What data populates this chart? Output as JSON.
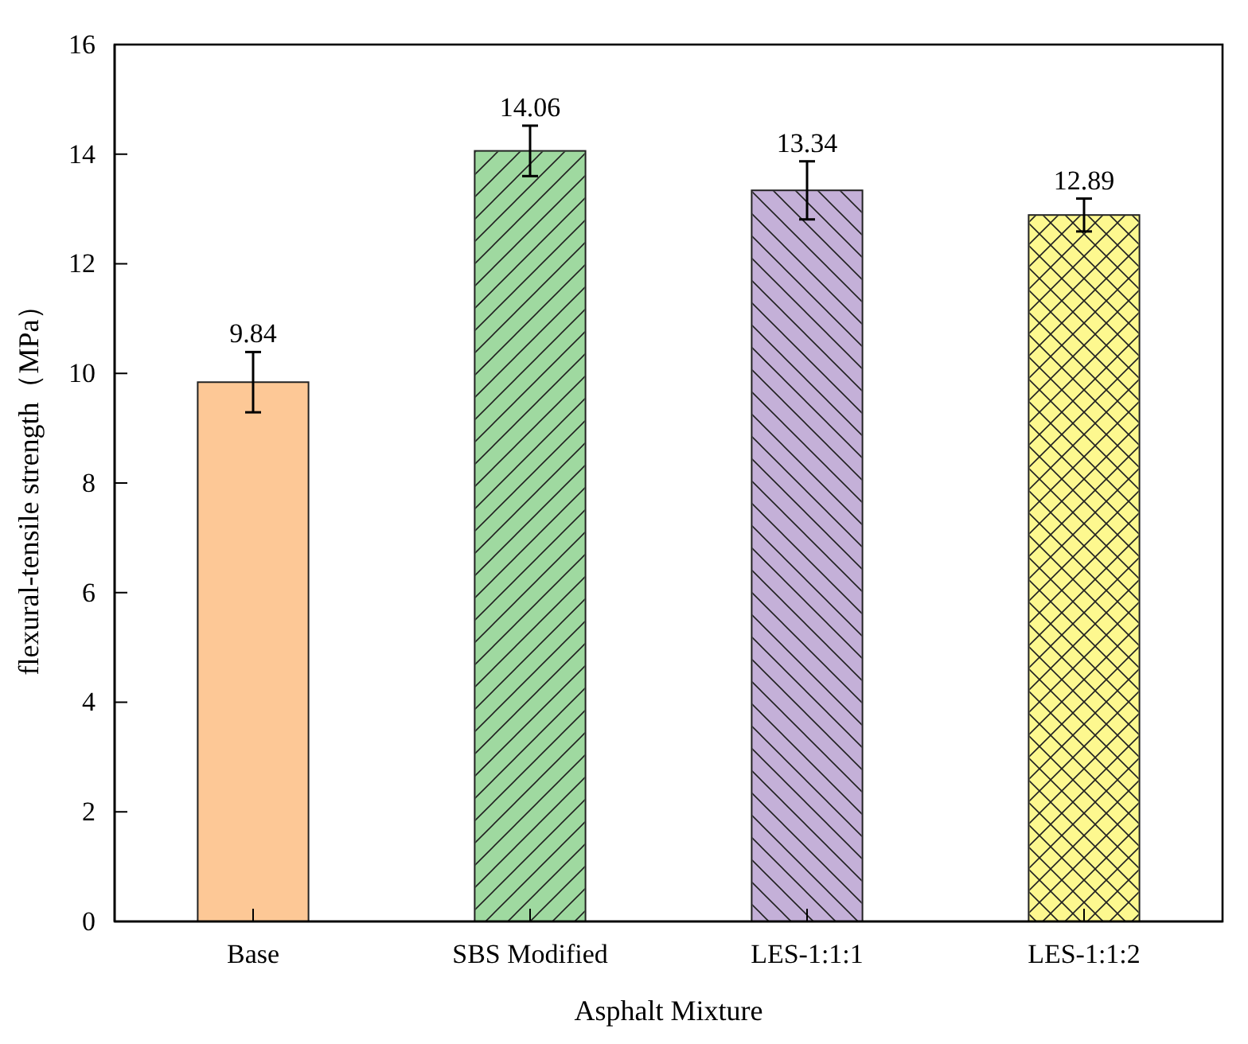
{
  "chart_data": {
    "type": "bar",
    "xlabel": "Asphalt Mixture",
    "ylabel": "flexural-tensile strength（MPa）",
    "categories": [
      "Base",
      "SBS Modified",
      "LES-1:1:1",
      "LES-1:1:2"
    ],
    "values": [
      9.84,
      14.06,
      13.34,
      12.89
    ],
    "colors": [
      "#fdc896",
      "#9fd9a0",
      "#c4b0d8",
      "#fdf88f"
    ],
    "errors": [
      0.55,
      0.46,
      0.53,
      0.3
    ],
    "data_labels": true,
    "ylim": [
      0,
      16
    ],
    "yticks": [
      0,
      2,
      4,
      6,
      8,
      10,
      12,
      14,
      16
    ]
  }
}
